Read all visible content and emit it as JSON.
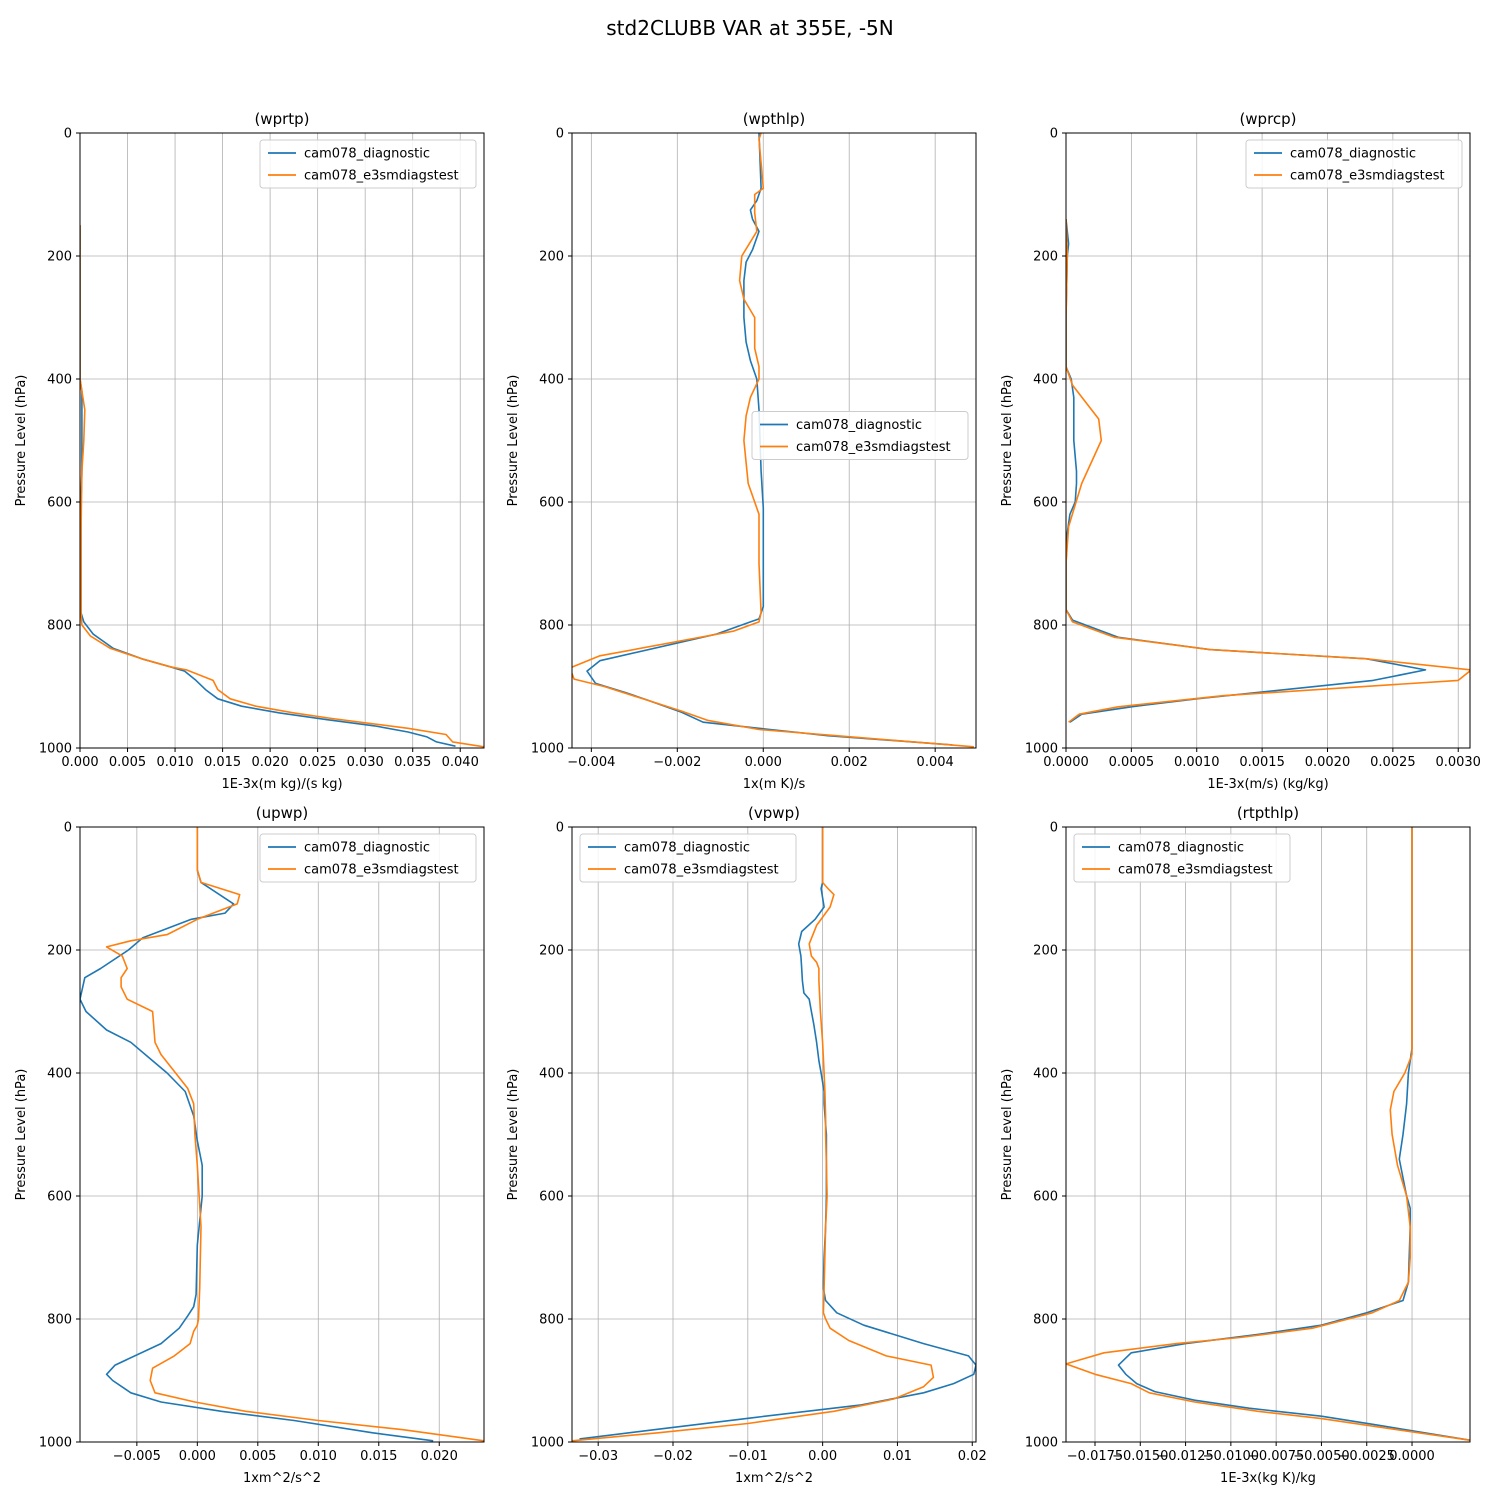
{
  "figure": {
    "title": "std2CLUBB VAR at 355E, -5N"
  },
  "colors": {
    "series0": "#1f77b4",
    "series1": "#ff7f0e",
    "grid": "#b0b0b0"
  },
  "chart_data": [
    {
      "type": "line",
      "title": "(wprtp)",
      "xlabel": "1E-3x(m kg)/(s kg)",
      "ylabel": "Pressure Level (hPa)",
      "xlim": [
        0,
        0.0425
      ],
      "ylim": [
        1000,
        0
      ],
      "xticks": [
        0,
        0.005,
        0.01,
        0.015,
        0.02,
        0.025,
        0.03,
        0.035,
        0.04
      ],
      "xtick_labels": [
        "0.000",
        "0.005",
        "0.010",
        "0.015",
        "0.020",
        "0.025",
        "0.030",
        "0.035",
        "0.040"
      ],
      "yticks": [
        0,
        200,
        400,
        600,
        800,
        1000
      ],
      "ytick_labels": [
        "0",
        "200",
        "400",
        "600",
        "800",
        "1000"
      ],
      "grid": true,
      "legend": "upper right",
      "series": [
        {
          "name": "cam078_diagnostic",
          "x": [
            0,
            0,
            0.0002,
            0.0002,
            0.0002,
            0.0001,
            0.0001,
            0.0001,
            0.0004,
            0.0014,
            0.0035,
            0.0065,
            0.0095,
            0.011,
            0.0122,
            0.0132,
            0.0145,
            0.017,
            0.021,
            0.026,
            0.031,
            0.0345,
            0.0365,
            0.0375,
            0.0395
          ],
          "y": [
            150,
            400,
            420,
            500,
            550,
            600,
            700,
            780,
            795,
            815,
            838,
            855,
            868,
            875,
            890,
            905,
            920,
            932,
            943,
            954,
            964,
            974,
            982,
            990,
            997
          ]
        },
        {
          "name": "cam078_e3smdiagstest",
          "x": [
            0,
            0,
            0.0002,
            0.0005,
            0.0004,
            0.0002,
            0.0001,
            0.0001,
            0.0002,
            0.0011,
            0.0032,
            0.0065,
            0.0095,
            0.0112,
            0.014,
            0.0145,
            0.0158,
            0.0185,
            0.0225,
            0.0265,
            0.0305,
            0.0345,
            0.0385,
            0.0392,
            0.0425
          ],
          "y": [
            150,
            400,
            420,
            450,
            500,
            550,
            650,
            780,
            800,
            818,
            838,
            855,
            868,
            873,
            890,
            905,
            920,
            932,
            943,
            952,
            960,
            968,
            978,
            990,
            998
          ]
        }
      ]
    },
    {
      "type": "line",
      "title": "(wpthlp)",
      "xlabel": "1x(m K)/s",
      "ylabel": "Pressure Level (hPa)",
      "xlim": [
        -0.00445,
        0.00495
      ],
      "ylim": [
        1000,
        0
      ],
      "xticks": [
        -0.004,
        -0.002,
        0,
        0.002,
        0.004
      ],
      "xtick_labels": [
        "−0.004",
        "−0.002",
        "0.000",
        "0.002",
        "0.004"
      ],
      "yticks": [
        0,
        200,
        400,
        600,
        800,
        1000
      ],
      "ytick_labels": [
        "0",
        "200",
        "400",
        "600",
        "800",
        "1000"
      ],
      "grid": true,
      "legend": "center right",
      "series": [
        {
          "name": "cam078_diagnostic",
          "x": [
            -0.0001,
            -5e-05,
            -0.00015,
            -0.0003,
            -0.00025,
            -0.0001,
            -0.00025,
            -0.0004,
            -0.00045,
            -0.00045,
            -0.0004,
            -0.0003,
            -0.00015,
            -0.0001,
            -5e-05,
            0,
            0,
            0,
            -0.0001,
            -0.0003,
            -0.0011,
            -0.0038,
            -0.0041,
            -0.0039,
            -0.0032,
            -0.0027,
            -0.0019,
            -0.0014,
            -0.0001,
            0.0015,
            0.0044
          ],
          "y": [
            0,
            90,
            110,
            125,
            140,
            160,
            190,
            210,
            240,
            300,
            340,
            370,
            400,
            450,
            550,
            610,
            700,
            770,
            790,
            795,
            815,
            858,
            875,
            895,
            910,
            922,
            942,
            958,
            968,
            980,
            995
          ]
        },
        {
          "name": "cam078_e3smdiagstest",
          "x": [
            -5e-05,
            -0.0001,
            0,
            -0.0002,
            -0.0002,
            -0.00015,
            -0.0005,
            -0.00055,
            -0.00045,
            -0.0002,
            -0.0002,
            -0.0001,
            -0.0001,
            -0.0003,
            -0.0004,
            -0.00045,
            -0.00035,
            -0.0001,
            -0.0001,
            -5e-05,
            -0.0001,
            -0.0007,
            -0.0038,
            -0.0045,
            -0.0044,
            -0.0037,
            -0.0028,
            -0.0019,
            -0.0013,
            -0.0001,
            0.0017,
            0.0049
          ],
          "y": [
            0,
            10,
            90,
            100,
            130,
            160,
            200,
            240,
            270,
            300,
            350,
            380,
            400,
            430,
            460,
            500,
            570,
            620,
            700,
            780,
            795,
            810,
            850,
            870,
            888,
            900,
            920,
            940,
            955,
            970,
            980,
            998
          ]
        }
      ]
    },
    {
      "type": "line",
      "title": "(wprcp)",
      "xlabel": "1E-3x(m/s) (kg/kg)",
      "ylabel": "Pressure Level (hPa)",
      "xlim": [
        0,
        0.00309
      ],
      "ylim": [
        1000,
        0
      ],
      "xticks": [
        0,
        0.0005,
        0.001,
        0.0015,
        0.002,
        0.0025,
        0.003
      ],
      "xtick_labels": [
        "0.0000",
        "0.0005",
        "0.0010",
        "0.0015",
        "0.0020",
        "0.0025",
        "0.0030"
      ],
      "yticks": [
        0,
        200,
        400,
        600,
        800,
        1000
      ],
      "ytick_labels": [
        "0",
        "200",
        "400",
        "600",
        "800",
        "1000"
      ],
      "grid": true,
      "legend": "upper right",
      "series": [
        {
          "name": "cam078_diagnostic",
          "x": [
            0,
            2e-05,
            1e-05,
            0,
            0,
            4e-05,
            6e-05,
            6e-05,
            8e-05,
            8e-05,
            7e-05,
            3e-05,
            1e-05,
            0,
            0,
            5e-05,
            0.0004,
            0.0011,
            0.0023,
            0.00275,
            0.00235,
            0.001,
            0.0005,
            0.00012,
            3e-05
          ],
          "y": [
            140,
            180,
            200,
            300,
            380,
            400,
            430,
            500,
            550,
            570,
            600,
            620,
            650,
            700,
            775,
            792,
            820,
            840,
            855,
            873,
            890,
            920,
            933,
            945,
            958
          ]
        },
        {
          "name": "cam078_e3smdiagstest",
          "x": [
            0,
            1e-05,
            0,
            0,
            5e-05,
            0.00025,
            0.00027,
            0.00012,
            2e-05,
            0,
            0,
            5e-05,
            0.00037,
            0.0011,
            0.0023,
            0.0031,
            0.003,
            0.0012,
            0.0004,
            0.0001,
            2e-05
          ],
          "y": [
            140,
            200,
            300,
            380,
            410,
            465,
            500,
            570,
            640,
            700,
            775,
            795,
            820,
            840,
            855,
            873,
            890,
            915,
            933,
            945,
            958
          ]
        }
      ]
    },
    {
      "type": "line",
      "title": "(upwp)",
      "xlabel": "1xm^2/s^2",
      "ylabel": "Pressure Level (hPa)",
      "xlim": [
        -0.0097,
        0.0237
      ],
      "ylim": [
        1000,
        0
      ],
      "xticks": [
        -0.005,
        0,
        0.005,
        0.01,
        0.015,
        0.02
      ],
      "xtick_labels": [
        "−0.005",
        "0.000",
        "0.005",
        "0.010",
        "0.015",
        "0.020"
      ],
      "yticks": [
        0,
        200,
        400,
        600,
        800,
        1000
      ],
      "ytick_labels": [
        "0",
        "200",
        "400",
        "600",
        "800",
        "1000"
      ],
      "grid": true,
      "legend": "upper right",
      "series": [
        {
          "name": "cam078_diagnostic",
          "x": [
            0,
            0,
            0.0003,
            0.003,
            0.0023,
            -0.0005,
            -0.0045,
            -0.0057,
            -0.008,
            -0.0093,
            -0.0097,
            -0.0092,
            -0.0075,
            -0.0055,
            -0.004,
            -0.0025,
            -0.001,
            -0.0003,
            0,
            0.0004,
            0.0004,
            0,
            -0.0001,
            -0.0003,
            -0.0008,
            -0.0015,
            -0.003,
            -0.0068,
            -0.0075,
            -0.007,
            -0.0055,
            -0.003,
            0.002,
            0.008,
            0.0145,
            0.0195
          ],
          "y": [
            0,
            70,
            90,
            125,
            140,
            150,
            180,
            200,
            230,
            245,
            280,
            300,
            330,
            350,
            375,
            400,
            430,
            470,
            510,
            550,
            600,
            680,
            760,
            780,
            795,
            815,
            840,
            875,
            890,
            900,
            920,
            935,
            950,
            965,
            985,
            998
          ]
        },
        {
          "name": "cam078_e3smdiagstest",
          "x": [
            0,
            0,
            0.0003,
            0.0035,
            0.0033,
            0,
            -0.0025,
            -0.0055,
            -0.0075,
            -0.0062,
            -0.0058,
            -0.0063,
            -0.0063,
            -0.0058,
            -0.0037,
            -0.0035,
            -0.003,
            -0.0018,
            -0.0008,
            -0.0003,
            -0.0002,
            0,
            0.0003,
            0.0002,
            0.0001,
            0,
            -0.0003,
            -0.0006,
            -0.0019,
            -0.0037,
            -0.0039,
            -0.0035,
            -0.0002,
            0.004,
            0.01,
            0.017,
            0.0237
          ],
          "y": [
            0,
            70,
            90,
            110,
            125,
            150,
            175,
            185,
            195,
            210,
            230,
            245,
            260,
            280,
            300,
            350,
            370,
            400,
            425,
            450,
            500,
            550,
            650,
            750,
            800,
            810,
            820,
            840,
            860,
            880,
            900,
            920,
            935,
            950,
            965,
            980,
            998
          ]
        }
      ]
    },
    {
      "type": "line",
      "title": "(vpwp)",
      "xlabel": "1xm^2/s^2",
      "ylabel": "Pressure Level (hPa)",
      "xlim": [
        -0.0335,
        0.0205
      ],
      "ylim": [
        1000,
        0
      ],
      "xticks": [
        -0.03,
        -0.02,
        -0.01,
        0,
        0.01,
        0.02
      ],
      "xtick_labels": [
        "−0.03",
        "−0.02",
        "−0.01",
        "0.00",
        "0.01",
        "0.02"
      ],
      "yticks": [
        0,
        200,
        400,
        600,
        800,
        1000
      ],
      "ytick_labels": [
        "0",
        "200",
        "400",
        "600",
        "800",
        "1000"
      ],
      "grid": true,
      "legend": "upper left",
      "series": [
        {
          "name": "cam078_diagnostic",
          "x": [
            0,
            0,
            -0.0002,
            0.0002,
            -0.001,
            -0.0028,
            -0.0032,
            -0.0029,
            -0.0028,
            -0.0027,
            -0.0025,
            -0.0018,
            -0.0015,
            -0.0012,
            -0.0008,
            -0.0005,
            -0.0002,
            0.0002,
            0.0002,
            0.0005,
            0.0005,
            0.0004,
            0.0002,
            0.0001,
            0.0001,
            0.0004,
            0.0019,
            0.0055,
            0.0135,
            0.0195,
            0.0205,
            0.0202,
            0.0175,
            0.0135,
            0.005,
            -0.009,
            -0.0225,
            -0.0325
          ],
          "y": [
            0,
            90,
            100,
            130,
            150,
            170,
            190,
            210,
            230,
            250,
            270,
            280,
            300,
            320,
            350,
            380,
            400,
            430,
            450,
            500,
            600,
            650,
            700,
            740,
            750,
            770,
            790,
            810,
            840,
            860,
            875,
            890,
            905,
            920,
            940,
            960,
            980,
            995
          ]
        },
        {
          "name": "cam078_e3smdiagstest",
          "x": [
            0,
            0,
            0.0007,
            0.0015,
            0.001,
            -0.0008,
            -0.0018,
            -0.0015,
            -0.0008,
            -0.0005,
            -0.0005,
            -0.0003,
            0,
            0.0002,
            0.0003,
            0.0004,
            0.0004,
            0.0005,
            0.0006,
            0.0004,
            0.0002,
            0.0001,
            0.0004,
            0.001,
            0.0035,
            0.0085,
            0.0145,
            0.0148,
            0.0135,
            0.0095,
            0.0015,
            -0.01,
            -0.022,
            -0.0335
          ],
          "y": [
            0,
            90,
            100,
            110,
            130,
            160,
            190,
            210,
            220,
            230,
            250,
            300,
            350,
            400,
            430,
            470,
            500,
            550,
            600,
            650,
            750,
            790,
            800,
            815,
            835,
            860,
            875,
            895,
            910,
            930,
            950,
            970,
            985,
            998
          ]
        }
      ]
    },
    {
      "type": "line",
      "title": "(rtpthlp)",
      "xlabel": "1E-3x(kg K)/kg",
      "ylabel": "Pressure Level (hPa)",
      "xlim": [
        -0.0191,
        0.0032
      ],
      "ylim": [
        1000,
        0
      ],
      "xticks": [
        -0.0175,
        -0.015,
        -0.0125,
        -0.01,
        -0.0075,
        -0.005,
        -0.0025,
        0
      ],
      "xtick_labels": [
        "−0.0175",
        "−0.0150",
        "−0.0125",
        "−0.0100",
        "−0.0075",
        "−0.0050",
        "−0.0025",
        "0.0000"
      ],
      "yticks": [
        0,
        200,
        400,
        600,
        800,
        1000
      ],
      "ytick_labels": [
        "0",
        "200",
        "400",
        "600",
        "800",
        "1000"
      ],
      "grid": true,
      "legend": "upper left",
      "series": [
        {
          "name": "cam078_diagnostic",
          "x": [
            0,
            0,
            -0.0002,
            -0.0003,
            -0.0005,
            -0.0007,
            -0.0003,
            -0.0001,
            -0.0001,
            -0.0002,
            -0.0005,
            -0.0025,
            -0.005,
            -0.0085,
            -0.0125,
            -0.0155,
            -0.0162,
            -0.0158,
            -0.0152,
            -0.0142,
            -0.012,
            -0.009,
            -0.005,
            -0.002,
            0.0032
          ],
          "y": [
            0,
            360,
            400,
            450,
            500,
            540,
            600,
            620,
            650,
            740,
            770,
            790,
            810,
            825,
            840,
            855,
            875,
            890,
            905,
            918,
            932,
            945,
            958,
            972,
            997
          ]
        },
        {
          "name": "cam078_e3smdiagstest",
          "x": [
            0,
            0,
            -0.0004,
            -0.001,
            -0.0012,
            -0.0011,
            -0.0008,
            -0.0003,
            -0.0001,
            -0.0001,
            -0.0002,
            -0.0007,
            -0.0022,
            -0.0055,
            -0.0095,
            -0.013,
            -0.017,
            -0.0191,
            -0.0175,
            -0.0155,
            -0.0145,
            -0.012,
            -0.0085,
            -0.005,
            -0.002,
            0.0032
          ],
          "y": [
            0,
            370,
            400,
            430,
            460,
            500,
            550,
            600,
            650,
            700,
            740,
            770,
            790,
            815,
            830,
            840,
            855,
            873,
            890,
            905,
            920,
            935,
            950,
            962,
            975,
            997
          ]
        }
      ]
    }
  ]
}
